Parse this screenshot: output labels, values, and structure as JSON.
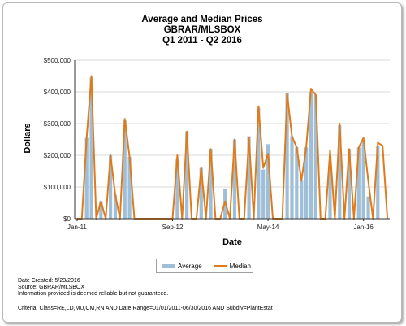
{
  "chart_data": {
    "type": "bar+line",
    "title_lines": [
      "Average and Median Prices",
      "GBRAR/MLSBOX",
      "Q1 2011 - Q2 2016"
    ],
    "xlabel": "Date",
    "ylabel": "Dollars",
    "x_ticks": [
      "Jan-11",
      "Sep-12",
      "May-14",
      "Jan-16"
    ],
    "y_ticks": [
      "$0",
      "$100,000",
      "$200,000",
      "$300,000",
      "$400,000",
      "$500,000"
    ],
    "ylim": [
      0,
      500000
    ],
    "n_months": 66,
    "series": [
      {
        "name": "Average",
        "kind": "bar",
        "color": "#9fbfd9",
        "values": [
          0,
          0,
          255000,
          445000,
          0,
          55000,
          0,
          200000,
          75000,
          0,
          310000,
          195000,
          0,
          0,
          0,
          0,
          0,
          0,
          0,
          0,
          0,
          190000,
          0,
          275000,
          0,
          0,
          160000,
          0,
          220000,
          0,
          0,
          95000,
          0,
          250000,
          0,
          0,
          260000,
          0,
          350000,
          155000,
          235000,
          0,
          0,
          0,
          395000,
          260000,
          225000,
          120000,
          225000,
          400000,
          390000,
          0,
          0,
          165000,
          0,
          295000,
          0,
          220000,
          0,
          225000,
          245000,
          70000,
          0,
          230000,
          0,
          0
        ]
      },
      {
        "name": "Median",
        "kind": "line",
        "color": "#e07b1c",
        "values": [
          0,
          0,
          255000,
          450000,
          0,
          55000,
          0,
          200000,
          75000,
          0,
          315000,
          195000,
          0,
          0,
          0,
          0,
          0,
          0,
          0,
          0,
          0,
          200000,
          0,
          275000,
          0,
          0,
          160000,
          0,
          220000,
          0,
          0,
          55000,
          0,
          250000,
          0,
          0,
          255000,
          0,
          355000,
          160000,
          205000,
          0,
          0,
          0,
          395000,
          260000,
          225000,
          120000,
          225000,
          410000,
          390000,
          0,
          0,
          215000,
          0,
          300000,
          0,
          220000,
          0,
          225000,
          255000,
          120000,
          0,
          240000,
          230000,
          0
        ]
      }
    ],
    "legend_position": "bottom"
  },
  "legend": {
    "average_label": "Average",
    "median_label": "Median"
  },
  "footer": {
    "date_created": "Date Created: 5/23/2016",
    "source": "Source: GBRAR/MLSBOX",
    "disclaimer": "Information provided is deemed reliable but not guaranteed.",
    "criteria": "Criteria: Class=RE,LD,MU,CM,RN AND Date Range=01/01/2011-06/30/2016 AND Subdiv=PlantEstat"
  }
}
